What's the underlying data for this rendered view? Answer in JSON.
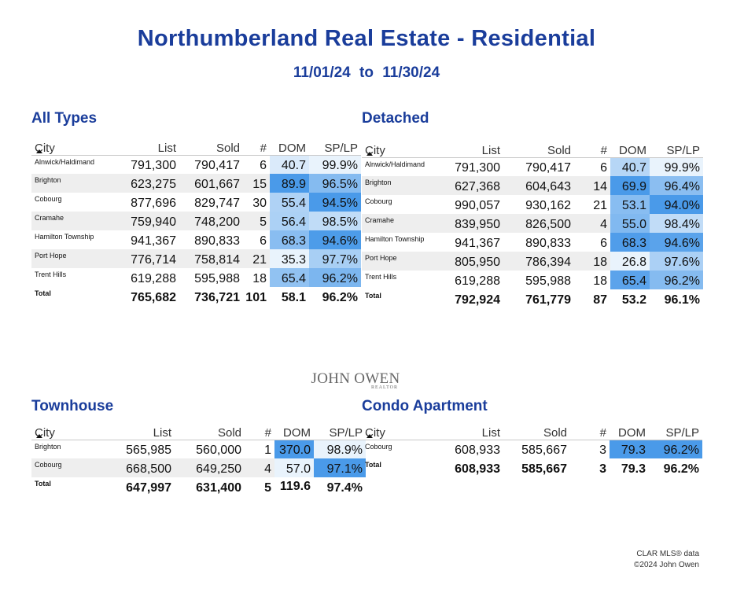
{
  "header": {
    "title": "Northumberland Real Estate - Residential",
    "date_from": "11/01/24",
    "date_sep": "to",
    "date_to": "11/30/24"
  },
  "columns": [
    "City",
    "List",
    "Sold",
    "#",
    "DOM",
    "SP/LP"
  ],
  "logo": {
    "name": "JOHN OWEN",
    "sub": "REALTOR"
  },
  "footer": {
    "line1": "CLAR MLS® data",
    "line2": "©2024 John Owen"
  },
  "colors": {
    "title": "#1a3d9b",
    "heat_low": "#ffffff",
    "heat_high": "#4a9ae9"
  },
  "chart_data": [
    {
      "type": "table",
      "title": "All Types",
      "rows": [
        {
          "city": "Alnwick/Haldimand",
          "list": "791,300",
          "sold": "790,417",
          "count": "6",
          "dom": "40.7",
          "splp": "99.9%"
        },
        {
          "city": "Brighton",
          "list": "623,275",
          "sold": "601,667",
          "count": "15",
          "dom": "89.9",
          "splp": "96.5%"
        },
        {
          "city": "Cobourg",
          "list": "877,696",
          "sold": "829,747",
          "count": "30",
          "dom": "55.4",
          "splp": "94.5%"
        },
        {
          "city": "Cramahe",
          "list": "759,940",
          "sold": "748,200",
          "count": "5",
          "dom": "56.4",
          "splp": "98.5%"
        },
        {
          "city": "Hamilton Township",
          "list": "941,367",
          "sold": "890,833",
          "count": "6",
          "dom": "68.3",
          "splp": "94.6%"
        },
        {
          "city": "Port Hope",
          "list": "776,714",
          "sold": "758,814",
          "count": "21",
          "dom": "35.3",
          "splp": "97.7%"
        },
        {
          "city": "Trent Hills",
          "list": "619,288",
          "sold": "595,988",
          "count": "18",
          "dom": "65.4",
          "splp": "96.2%"
        }
      ],
      "total": {
        "city": "Total",
        "list": "765,682",
        "sold": "736,721",
        "count": "101",
        "dom": "58.1",
        "splp": "96.2%"
      }
    },
    {
      "type": "table",
      "title": "Detached",
      "rows": [
        {
          "city": "Alnwick/Haldimand",
          "list": "791,300",
          "sold": "790,417",
          "count": "6",
          "dom": "40.7",
          "splp": "99.9%"
        },
        {
          "city": "Brighton",
          "list": "627,368",
          "sold": "604,643",
          "count": "14",
          "dom": "69.9",
          "splp": "96.4%"
        },
        {
          "city": "Cobourg",
          "list": "990,057",
          "sold": "930,162",
          "count": "21",
          "dom": "53.1",
          "splp": "94.0%"
        },
        {
          "city": "Cramahe",
          "list": "839,950",
          "sold": "826,500",
          "count": "4",
          "dom": "55.0",
          "splp": "98.4%"
        },
        {
          "city": "Hamilton Township",
          "list": "941,367",
          "sold": "890,833",
          "count": "6",
          "dom": "68.3",
          "splp": "94.6%"
        },
        {
          "city": "Port Hope",
          "list": "805,950",
          "sold": "786,394",
          "count": "18",
          "dom": "26.8",
          "splp": "97.6%"
        },
        {
          "city": "Trent Hills",
          "list": "619,288",
          "sold": "595,988",
          "count": "18",
          "dom": "65.4",
          "splp": "96.2%"
        }
      ],
      "total": {
        "city": "Total",
        "list": "792,924",
        "sold": "761,779",
        "count": "87",
        "dom": "53.2",
        "splp": "96.1%"
      }
    },
    {
      "type": "table",
      "title": "Townhouse",
      "rows": [
        {
          "city": "Brighton",
          "list": "565,985",
          "sold": "560,000",
          "count": "1",
          "dom": "370.0",
          "splp": "98.9%"
        },
        {
          "city": "Cobourg",
          "list": "668,500",
          "sold": "649,250",
          "count": "4",
          "dom": "57.0",
          "splp": "97.1%"
        }
      ],
      "total": {
        "city": "Total",
        "list": "647,997",
        "sold": "631,400",
        "count": "5",
        "dom": "119.6",
        "splp": "97.4%"
      }
    },
    {
      "type": "table",
      "title": "Condo Apartment",
      "rows": [
        {
          "city": "Cobourg",
          "list": "608,933",
          "sold": "585,667",
          "count": "3",
          "dom": "79.3",
          "splp": "96.2%"
        }
      ],
      "total": {
        "city": "Total",
        "list": "608,933",
        "sold": "585,667",
        "count": "3",
        "dom": "79.3",
        "splp": "96.2%"
      }
    }
  ]
}
